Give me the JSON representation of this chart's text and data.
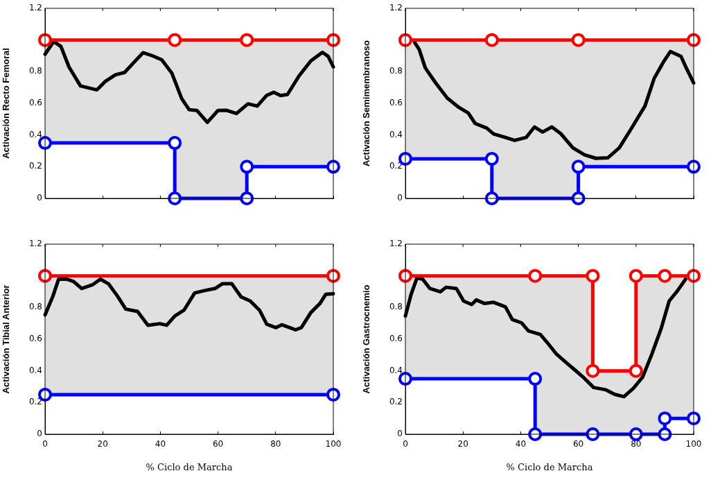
{
  "chart_data": [
    {
      "type": "line",
      "ylabel": "Activación Recto Femoral",
      "xlim": [
        0,
        100
      ],
      "xticks": [
        0,
        20,
        40,
        60,
        80,
        100
      ],
      "ylim": [
        0,
        1.2
      ],
      "yticks": [
        0,
        0.2,
        0.4,
        0.6,
        0.8,
        1.2
      ],
      "tick_labels": "y",
      "series": [
        {
          "color": "#000000",
          "marker": "none",
          "x": [
            0,
            3,
            5.5,
            8.3,
            12.3,
            18,
            21,
            24.4,
            27.6,
            30.9,
            34,
            37.3,
            40.5,
            44,
            47.4,
            50,
            52.7,
            56.3,
            60,
            63,
            66.4,
            70.4,
            73.6,
            76.8,
            79.3,
            81.7,
            84.1,
            88.1,
            92.2,
            96.2,
            98.2,
            100
          ],
          "values": [
            0.91,
            0.99,
            0.96,
            0.83,
            0.71,
            0.685,
            0.74,
            0.78,
            0.795,
            0.86,
            0.92,
            0.9,
            0.875,
            0.79,
            0.63,
            0.56,
            0.555,
            0.48,
            0.555,
            0.556,
            0.536,
            0.597,
            0.583,
            0.649,
            0.67,
            0.649,
            0.656,
            0.773,
            0.868,
            0.922,
            0.897,
            0.83
          ]
        },
        {
          "type": "area",
          "color": "#ff0000",
          "marker": "circle",
          "x": [
            0,
            45,
            70,
            100
          ],
          "values": [
            1,
            1,
            1,
            1
          ]
        },
        {
          "color": "#0000ff",
          "marker": "circle",
          "x": [
            0,
            45,
            45,
            70,
            70,
            100
          ],
          "values": [
            0.35,
            0.35,
            0,
            0,
            0.2,
            0.2
          ]
        }
      ]
    },
    {
      "type": "line",
      "ylabel": "Activación Semimembranoso",
      "xlim": [
        0,
        100
      ],
      "xticks": [
        0,
        20,
        40,
        60,
        80,
        100
      ],
      "ylim": [
        0,
        1.2
      ],
      "yticks": [
        0,
        0.2,
        0.4,
        0.6,
        0.8,
        1.2
      ],
      "tick_labels": "y",
      "series": [
        {
          "color": "#000000",
          "marker": "none",
          "x": [
            3.2,
            4.8,
            6.9,
            10.5,
            14.5,
            18.5,
            21.8,
            24.2,
            28.2,
            30.6,
            34.7,
            37.9,
            41.9,
            44.8,
            47.6,
            50.8,
            54,
            58.1,
            62.1,
            66.1,
            70.2,
            74.2,
            78.2,
            83.1,
            86.3,
            89.5,
            91.9,
            95.6,
            97.6,
            100
          ],
          "values": [
            0.985,
            0.94,
            0.824,
            0.729,
            0.634,
            0.575,
            0.539,
            0.473,
            0.444,
            0.407,
            0.385,
            0.366,
            0.385,
            0.451,
            0.419,
            0.451,
            0.407,
            0.319,
            0.275,
            0.253,
            0.256,
            0.319,
            0.436,
            0.583,
            0.758,
            0.861,
            0.927,
            0.897,
            0.817,
            0.729
          ]
        },
        {
          "type": "area",
          "color": "#ff0000",
          "marker": "circle",
          "x": [
            0,
            30,
            60,
            100
          ],
          "values": [
            1,
            1,
            1,
            1
          ]
        },
        {
          "color": "#0000ff",
          "marker": "circle",
          "x": [
            0,
            30,
            30,
            60,
            60,
            100
          ],
          "values": [
            0.25,
            0.25,
            0,
            0,
            0.2,
            0.2
          ]
        }
      ]
    },
    {
      "type": "line",
      "ylabel": "Activación Tibial Anterior",
      "xlabel": "% Ciclo de Marcha",
      "xlim": [
        0,
        100
      ],
      "xticks": [
        0,
        20,
        40,
        60,
        80,
        100
      ],
      "ylim": [
        0,
        1.2
      ],
      "yticks": [
        0,
        0.2,
        0.4,
        0.6,
        0.8,
        1.2
      ],
      "series": [
        {
          "color": "#000000",
          "marker": "none",
          "x": [
            0,
            2.7,
            4.7,
            7.5,
            9.9,
            12.7,
            16.4,
            19.2,
            22,
            25.2,
            28,
            32.1,
            35.7,
            39.8,
            42.2,
            45,
            48.2,
            51.9,
            55.1,
            59.1,
            61.5,
            64.8,
            68,
            71.2,
            74.4,
            76.9,
            80.1,
            82.1,
            84.9,
            86.9,
            88.9,
            92.2,
            95.4,
            97.4,
            100
          ],
          "values": [
            0.753,
            0.87,
            0.979,
            0.979,
            0.964,
            0.92,
            0.943,
            0.979,
            0.95,
            0.87,
            0.79,
            0.775,
            0.688,
            0.698,
            0.688,
            0.746,
            0.783,
            0.892,
            0.906,
            0.921,
            0.95,
            0.95,
            0.867,
            0.841,
            0.783,
            0.695,
            0.673,
            0.691,
            0.673,
            0.659,
            0.673,
            0.768,
            0.826,
            0.884,
            0.887
          ]
        },
        {
          "type": "area",
          "color": "#ff0000",
          "marker": "circle",
          "x": [
            0,
            100
          ],
          "values": [
            1,
            1
          ]
        },
        {
          "color": "#0000ff",
          "marker": "circle",
          "x": [
            0,
            100
          ],
          "values": [
            0.25,
            0.25
          ]
        }
      ]
    },
    {
      "type": "line",
      "ylabel": "Activación Gastrocnemio",
      "xlabel": "% Ciclo de Marcha",
      "xlim": [
        0,
        100
      ],
      "xticks": [
        0,
        20,
        40,
        60,
        80,
        100
      ],
      "ylim": [
        0,
        1.2
      ],
      "yticks": [
        0,
        0.2,
        0.4,
        0.6,
        0.8,
        1.2
      ],
      "series": [
        {
          "color": "#000000",
          "marker": "none",
          "x": [
            0,
            2,
            4,
            6,
            8.5,
            12.1,
            14.1,
            17.7,
            20.2,
            23,
            24.6,
            27.4,
            30.6,
            34.7,
            37.1,
            40.3,
            42.7,
            46.8,
            49.2,
            52.4,
            55.6,
            58.9,
            62.1,
            65.3,
            69.4,
            72.6,
            75.8,
            79,
            82.3,
            85.5,
            88.7,
            91.5,
            94.4,
            97.2
          ],
          "values": [
            0.746,
            0.884,
            0.986,
            0.979,
            0.92,
            0.899,
            0.928,
            0.92,
            0.841,
            0.819,
            0.848,
            0.826,
            0.833,
            0.804,
            0.724,
            0.703,
            0.652,
            0.63,
            0.579,
            0.506,
            0.455,
            0.404,
            0.353,
            0.295,
            0.281,
            0.252,
            0.237,
            0.288,
            0.361,
            0.506,
            0.666,
            0.841,
            0.906,
            0.979
          ]
        },
        {
          "type": "area",
          "color": "#ff0000",
          "marker": "circle",
          "x": [
            0,
            45,
            65,
            65,
            80,
            80,
            90,
            100
          ],
          "values": [
            1,
            1,
            1,
            0.4,
            0.4,
            1,
            1,
            1
          ]
        },
        {
          "color": "#0000ff",
          "marker": "circle",
          "x": [
            0,
            45,
            45,
            65,
            80,
            90,
            90,
            100
          ],
          "values": [
            0.35,
            0.35,
            0,
            0,
            0,
            0,
            0.1,
            0.1
          ]
        }
      ]
    }
  ]
}
